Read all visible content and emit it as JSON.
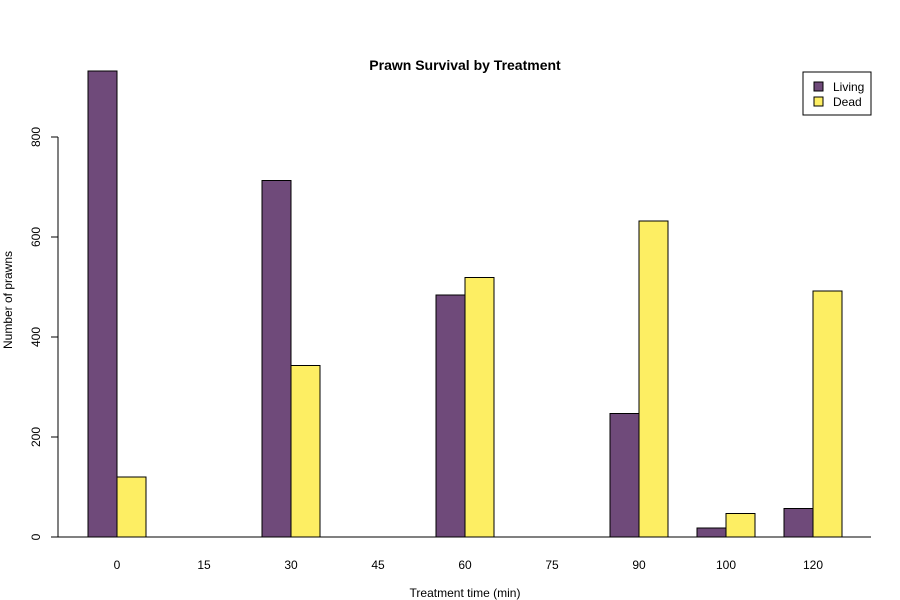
{
  "chart_data": {
    "type": "bar",
    "title": "Prawn Survival by Treatment",
    "xlabel": "Treatment time (min)",
    "ylabel": "Number of prawns",
    "categories": [
      "0",
      "15",
      "30",
      "45",
      "60",
      "75",
      "90",
      "100",
      "120"
    ],
    "series": [
      {
        "name": "Living",
        "color": "#6f4a7a",
        "values": [
          932,
          0,
          713,
          0,
          484,
          0,
          247,
          18,
          57
        ]
      },
      {
        "name": "Dead",
        "color": "#fdee63",
        "values": [
          120,
          0,
          343,
          0,
          519,
          0,
          632,
          47,
          492
        ]
      }
    ],
    "ylim": [
      0,
      930
    ],
    "yticks": [
      0,
      200,
      400,
      600,
      800
    ],
    "legend_position": "top-right",
    "grid": false
  }
}
